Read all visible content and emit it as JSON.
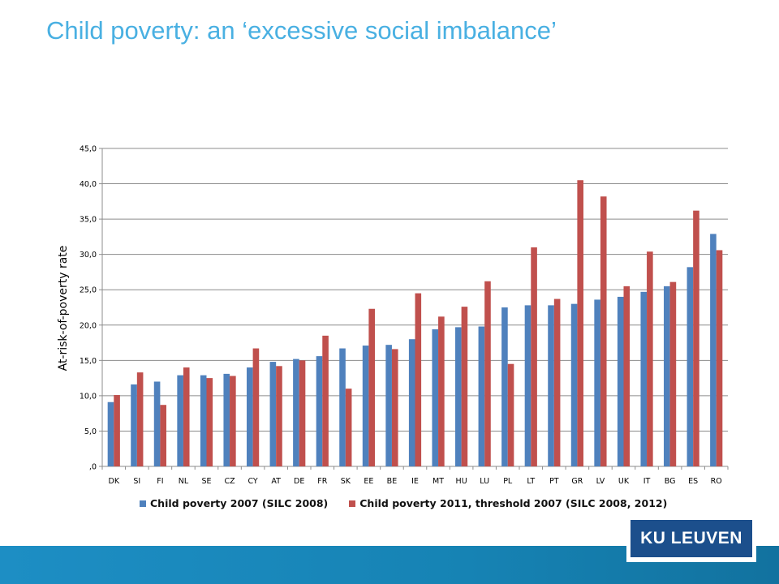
{
  "slide": {
    "title": "Child poverty: an ‘excessive social imbalance’",
    "logo_text": "KU LEUVEN"
  },
  "colors": {
    "title": "#49b0e2",
    "series_2007": "#4f81bd",
    "series_2011": "#c0504d",
    "footer": "#1683b4",
    "logo_bg": "#1c4f8c"
  },
  "chart_data": {
    "type": "bar",
    "title": "",
    "xlabel": "",
    "ylabel": "At-risk-of-poverty rate",
    "ylim": [
      0,
      45
    ],
    "yticks": [
      ",0",
      "5,0",
      "10,0",
      "15,0",
      "20,0",
      "25,0",
      "30,0",
      "35,0",
      "40,0",
      "45,0"
    ],
    "grid": true,
    "legend_position": "bottom",
    "categories": [
      "DK",
      "SI",
      "FI",
      "NL",
      "SE",
      "CZ",
      "CY",
      "AT",
      "DE",
      "FR",
      "SK",
      "EE",
      "BE",
      "IE",
      "MT",
      "HU",
      "LU",
      "PL",
      "LT",
      "PT",
      "GR",
      "LV",
      "UK",
      "IT",
      "BG",
      "ES",
      "RO"
    ],
    "series": [
      {
        "name": "Child poverty 2007 (SILC 2008)",
        "color": "#4f81bd",
        "values": [
          9.1,
          11.6,
          12.0,
          12.9,
          12.9,
          13.1,
          14.0,
          14.8,
          15.2,
          15.6,
          16.7,
          17.1,
          17.2,
          18.0,
          19.4,
          19.7,
          19.8,
          22.5,
          22.8,
          22.8,
          23.0,
          23.6,
          24.0,
          24.7,
          25.5,
          28.2,
          32.9
        ]
      },
      {
        "name": "Child poverty 2011, threshold 2007 (SILC 2008, 2012)",
        "color": "#c0504d",
        "values": [
          10.1,
          13.3,
          8.7,
          14.0,
          12.5,
          12.8,
          16.7,
          14.2,
          15.0,
          18.5,
          11.0,
          22.3,
          16.6,
          24.5,
          21.2,
          22.6,
          26.2,
          14.5,
          31.0,
          23.7,
          40.5,
          38.2,
          25.5,
          30.4,
          26.1,
          36.2,
          30.6
        ]
      }
    ]
  }
}
